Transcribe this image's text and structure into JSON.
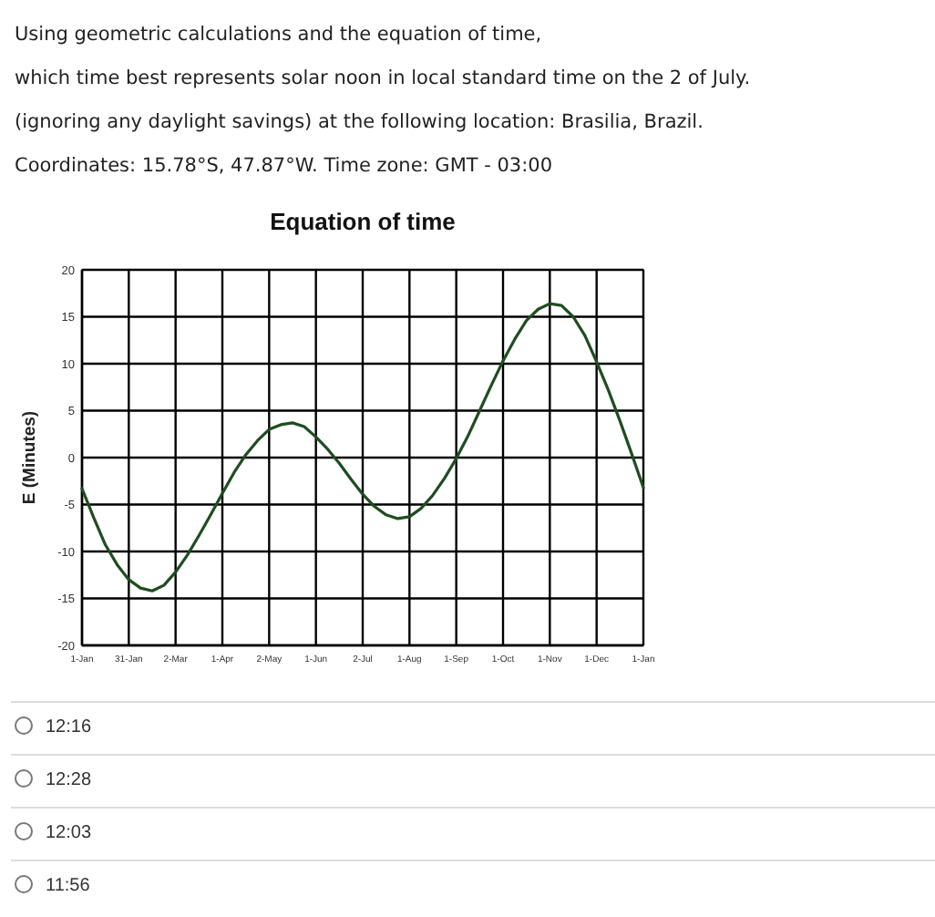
{
  "chart_data": {
    "type": "line",
    "title": "Equation of time",
    "ylabel": "E (Minutes)",
    "annotations": [
      "Using geometric calculations and the equation of time,",
      "which time best represents solar noon in local standard time on the 2 of July.",
      "(ignoring any daylight savings) at the following location: Brasilia, Brazil.",
      "Coordinates: 15.78°S, 47.87°W. Time zone: GMT - 03:00",
      "12:16",
      "12:28",
      "12:03",
      "11:56"
    ],
    "categories": [
      "1-Jan",
      null,
      null,
      null,
      "31-Jan",
      null,
      null,
      null,
      "2-Mar",
      null,
      null,
      null,
      "1-Apr",
      null,
      null,
      null,
      "2-May",
      null,
      null,
      null,
      "1-Jun",
      null,
      null,
      null,
      "2-Jul",
      null,
      null,
      null,
      "1-Aug",
      null,
      null,
      null,
      "1-Sep",
      null,
      null,
      null,
      "1-Oct",
      null,
      null,
      null,
      "1-Nov",
      null,
      null,
      null,
      "1-Dec",
      null,
      null,
      null,
      "1-Jan"
    ],
    "series": [
      {
        "color": "#1f4d1f",
        "values": [
          -3.3,
          -6.4,
          -9.3,
          -11.4,
          -13.0,
          -13.9,
          -14.2,
          -13.6,
          -12.2,
          -10.4,
          -8.3,
          -6.1,
          -3.8,
          -1.6,
          0.3,
          1.8,
          3.0,
          3.5,
          3.7,
          3.3,
          2.2,
          0.9,
          -0.6,
          -2.3,
          -3.9,
          -5.2,
          -6.1,
          -6.5,
          -6.3,
          -5.4,
          -4.0,
          -2.2,
          -0.1,
          2.3,
          5.0,
          7.7,
          10.3,
          12.6,
          14.6,
          15.8,
          16.4,
          16.2,
          15.0,
          13.0,
          10.2,
          7.2,
          3.9,
          0.4,
          -3.2
        ]
      }
    ],
    "ylim": [
      -20,
      20
    ],
    "yticks": [
      -20,
      -15,
      -10,
      -5,
      0,
      5,
      10,
      15,
      20
    ],
    "grid": true,
    "marker": "none",
    "line_style": "solid"
  }
}
